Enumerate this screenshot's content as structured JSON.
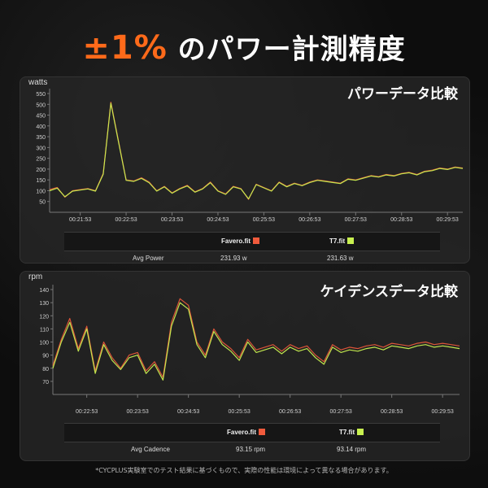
{
  "headline": {
    "accent": "±1%",
    "rest": " のパワー計測精度"
  },
  "colors": {
    "accent": "#ff6a1a",
    "favero": "#f05a3c",
    "t7": "#c8f050"
  },
  "footnote": "*CYCPLUS実験室でのテスト結果に基づくもので、実際の性能は環境によって異なる場合があります。",
  "chart_data": [
    {
      "type": "line",
      "title": "パワーデータ比較",
      "ylabel": "watts",
      "ylim": [
        0,
        550
      ],
      "yticks": [
        50,
        100,
        150,
        200,
        250,
        300,
        350,
        400,
        450,
        500,
        550
      ],
      "xticks": [
        "00:21:53",
        "00:22:53",
        "00:23:53",
        "00:24:53",
        "00:25:53",
        "00:26:53",
        "00:27:53",
        "00:28:53",
        "00:29:53"
      ],
      "x": [
        "00:21:13",
        "00:21:23",
        "00:21:33",
        "00:21:43",
        "00:21:53",
        "00:22:03",
        "00:22:13",
        "00:22:23",
        "00:22:33",
        "00:22:43",
        "00:22:53",
        "00:23:03",
        "00:23:13",
        "00:23:23",
        "00:23:33",
        "00:23:43",
        "00:23:53",
        "00:24:03",
        "00:24:13",
        "00:24:23",
        "00:24:33",
        "00:24:43",
        "00:24:53",
        "00:25:03",
        "00:25:13",
        "00:25:23",
        "00:25:33",
        "00:25:43",
        "00:25:53",
        "00:26:03",
        "00:26:13",
        "00:26:23",
        "00:26:33",
        "00:26:43",
        "00:26:53",
        "00:27:03",
        "00:27:13",
        "00:27:23",
        "00:27:33",
        "00:27:43",
        "00:27:53",
        "00:28:03",
        "00:28:13",
        "00:28:23",
        "00:28:33",
        "00:28:43",
        "00:28:53",
        "00:29:03",
        "00:29:13",
        "00:29:23",
        "00:29:33",
        "00:29:43",
        "00:29:53",
        "00:30:03",
        "00:30:13"
      ],
      "series": [
        {
          "name": "Favero.fit",
          "values": [
            105,
            115,
            70,
            100,
            105,
            110,
            100,
            180,
            510,
            330,
            150,
            145,
            160,
            140,
            100,
            120,
            90,
            110,
            125,
            95,
            110,
            140,
            100,
            85,
            120,
            110,
            60,
            130,
            115,
            100,
            140,
            120,
            135,
            125,
            140,
            150,
            145,
            140,
            135,
            155,
            150,
            160,
            170,
            165,
            175,
            170,
            180,
            185,
            175,
            190,
            195,
            205,
            200,
            210,
            205
          ]
        },
        {
          "name": "T7.fit",
          "values": [
            100,
            112,
            72,
            98,
            103,
            108,
            98,
            176,
            505,
            326,
            148,
            143,
            157,
            137,
            98,
            118,
            88,
            108,
            122,
            93,
            108,
            137,
            98,
            83,
            118,
            108,
            62,
            128,
            113,
            98,
            138,
            118,
            133,
            123,
            138,
            148,
            143,
            138,
            133,
            153,
            148,
            158,
            168,
            163,
            173,
            168,
            178,
            183,
            173,
            188,
            193,
            203,
            198,
            208,
            203
          ]
        }
      ],
      "stats": {
        "label": "Avg Power",
        "values": [
          "231.93 w",
          "231.63 w"
        ]
      }
    },
    {
      "type": "line",
      "title": "ケイデンスデータ比較",
      "ylabel": "rpm",
      "ylim": [
        60,
        140
      ],
      "yticks": [
        70,
        80,
        90,
        100,
        110,
        120,
        130,
        140
      ],
      "xticks": [
        "00:22:53",
        "00:23:53",
        "00:24:53",
        "00:25:53",
        "00:26:53",
        "00:27:53",
        "00:28:53",
        "00:29:53"
      ],
      "x": [
        "00:22:13",
        "00:22:23",
        "00:22:33",
        "00:22:43",
        "00:22:53",
        "00:23:03",
        "00:23:13",
        "00:23:23",
        "00:23:33",
        "00:23:43",
        "00:23:53",
        "00:24:03",
        "00:24:13",
        "00:24:23",
        "00:24:33",
        "00:24:43",
        "00:24:53",
        "00:25:03",
        "00:25:13",
        "00:25:23",
        "00:25:33",
        "00:25:43",
        "00:25:53",
        "00:26:03",
        "00:26:13",
        "00:26:23",
        "00:26:33",
        "00:26:43",
        "00:26:53",
        "00:27:03",
        "00:27:13",
        "00:27:23",
        "00:27:33",
        "00:27:43",
        "00:27:53",
        "00:28:03",
        "00:28:13",
        "00:28:23",
        "00:28:33",
        "00:28:43",
        "00:28:53",
        "00:29:03",
        "00:29:13",
        "00:29:23",
        "00:29:33",
        "00:29:43",
        "00:29:53",
        "00:30:03",
        "00:30:13"
      ],
      "series": [
        {
          "name": "Favero.fit",
          "values": [
            82,
            102,
            118,
            95,
            112,
            78,
            100,
            88,
            80,
            90,
            92,
            78,
            85,
            73,
            115,
            133,
            128,
            100,
            90,
            110,
            100,
            95,
            88,
            102,
            94,
            96,
            98,
            93,
            98,
            95,
            97,
            90,
            85,
            98,
            94,
            96,
            95,
            97,
            98,
            96,
            99,
            98,
            97,
            99,
            100,
            98,
            99,
            98,
            97
          ]
        },
        {
          "name": "T7.fit",
          "values": [
            80,
            100,
            115,
            93,
            110,
            76,
            98,
            86,
            79,
            88,
            90,
            76,
            83,
            71,
            112,
            130,
            125,
            98,
            88,
            108,
            98,
            93,
            86,
            100,
            92,
            94,
            96,
            91,
            96,
            93,
            95,
            88,
            83,
            96,
            92,
            94,
            93,
            95,
            96,
            94,
            97,
            96,
            95,
            97,
            98,
            96,
            97,
            96,
            95
          ]
        }
      ],
      "stats": {
        "label": "Avg Cadence",
        "values": [
          "93.15 rpm",
          "93.14 rpm"
        ]
      }
    }
  ]
}
